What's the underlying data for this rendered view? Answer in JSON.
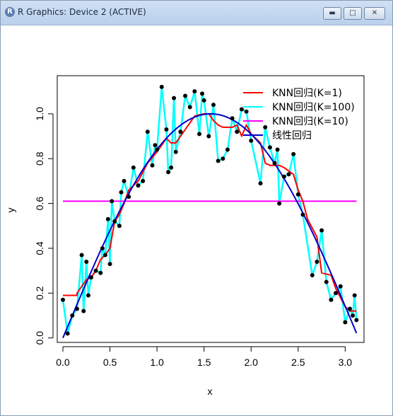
{
  "window": {
    "title": "R Graphics: Device 2 (ACTIVE)",
    "icon": "r-logo-icon",
    "buttons": {
      "minimize": "minimize-icon",
      "maximize": "maximize-icon",
      "close": "close-icon"
    }
  },
  "chart_data": {
    "type": "scatter",
    "xlabel": "x",
    "ylabel": "y",
    "xlim": [
      -0.06,
      3.2
    ],
    "ylim": [
      -0.02,
      1.17
    ],
    "x_ticks": [
      0.0,
      0.5,
      1.0,
      1.5,
      2.0,
      2.5,
      3.0
    ],
    "x_tick_labels": [
      "0.0",
      "0.5",
      "1.0",
      "1.5",
      "2.0",
      "2.5",
      "3.0"
    ],
    "y_ticks": [
      0.0,
      0.2,
      0.4,
      0.6,
      0.8,
      1.0
    ],
    "y_tick_labels": [
      "0.0",
      "0.2",
      "0.4",
      "0.6",
      "0.8",
      "1.0"
    ],
    "legend_position": "top-right",
    "points": {
      "x": [
        0.0,
        0.05,
        0.1,
        0.15,
        0.2,
        0.22,
        0.25,
        0.27,
        0.3,
        0.35,
        0.4,
        0.42,
        0.45,
        0.48,
        0.5,
        0.52,
        0.55,
        0.6,
        0.62,
        0.65,
        0.7,
        0.75,
        0.8,
        0.85,
        0.9,
        0.95,
        0.98,
        1.0,
        1.05,
        1.1,
        1.12,
        1.15,
        1.18,
        1.2,
        1.25,
        1.3,
        1.35,
        1.4,
        1.45,
        1.48,
        1.5,
        1.55,
        1.6,
        1.65,
        1.7,
        1.75,
        1.8,
        1.85,
        1.9,
        1.95,
        2.0,
        2.1,
        2.15,
        2.2,
        2.25,
        2.28,
        2.3,
        2.35,
        2.4,
        2.45,
        2.5,
        2.55,
        2.65,
        2.7,
        2.75,
        2.8,
        2.85,
        2.9,
        2.95,
        3.0,
        3.05,
        3.08,
        3.1,
        3.12
      ],
      "y": [
        0.17,
        0.02,
        0.1,
        0.13,
        0.37,
        0.12,
        0.34,
        0.19,
        0.27,
        0.3,
        0.29,
        0.4,
        0.37,
        0.53,
        0.33,
        0.61,
        0.52,
        0.5,
        0.65,
        0.7,
        0.63,
        0.76,
        0.68,
        0.7,
        0.92,
        0.77,
        0.86,
        0.84,
        1.12,
        0.93,
        0.74,
        0.76,
        1.07,
        0.83,
        0.92,
        1.08,
        1.03,
        1.1,
        0.91,
        1.09,
        1.06,
        0.9,
        1.04,
        0.79,
        0.8,
        0.84,
        0.98,
        0.92,
        1.02,
        1.01,
        0.88,
        0.69,
        0.94,
        0.85,
        0.78,
        0.84,
        0.6,
        0.72,
        0.73,
        0.82,
        0.64,
        0.55,
        0.28,
        0.34,
        0.48,
        0.25,
        0.17,
        0.2,
        0.23,
        0.07,
        0.13,
        0.1,
        0.19,
        0.08
      ]
    },
    "series": [
      {
        "name": "KNN回归(K=1)",
        "color": "#ff0000",
        "x": [
          0.0,
          0.15,
          0.15,
          0.25,
          0.3,
          0.35,
          0.4,
          0.45,
          0.5,
          0.55,
          0.6,
          0.65,
          0.7,
          0.8,
          0.9,
          1.0,
          1.1,
          1.15,
          1.2,
          1.3,
          1.4,
          1.5,
          1.55,
          1.6,
          1.65,
          1.7,
          1.8,
          1.85,
          1.9,
          1.95,
          2.0,
          2.1,
          2.15,
          2.2,
          2.3,
          2.35,
          2.45,
          2.5,
          2.55,
          2.6,
          2.7,
          2.75,
          2.85,
          2.9,
          3.0,
          3.05,
          3.12
        ],
        "y": [
          0.19,
          0.19,
          0.2,
          0.26,
          0.27,
          0.3,
          0.35,
          0.37,
          0.4,
          0.52,
          0.55,
          0.6,
          0.66,
          0.7,
          0.78,
          0.83,
          0.89,
          0.87,
          0.87,
          0.93,
          0.99,
          1.0,
          1.0,
          0.97,
          0.95,
          0.94,
          0.94,
          0.95,
          0.9,
          0.95,
          0.91,
          0.87,
          0.78,
          0.77,
          0.77,
          0.76,
          0.73,
          0.66,
          0.61,
          0.53,
          0.45,
          0.29,
          0.28,
          0.22,
          0.14,
          0.12,
          0.12
        ]
      },
      {
        "name": "KNN回归(K=100)",
        "color": "#00ffff",
        "connects": "points"
      },
      {
        "name": "KNN回归(K=10)",
        "color": "#ff00ff",
        "x": [
          0.0,
          3.12
        ],
        "y": [
          0.61,
          0.61
        ]
      },
      {
        "name": "线性回归",
        "color": "#0000cc",
        "curve": "sine",
        "x_range": [
          0.0,
          3.12
        ]
      }
    ]
  }
}
